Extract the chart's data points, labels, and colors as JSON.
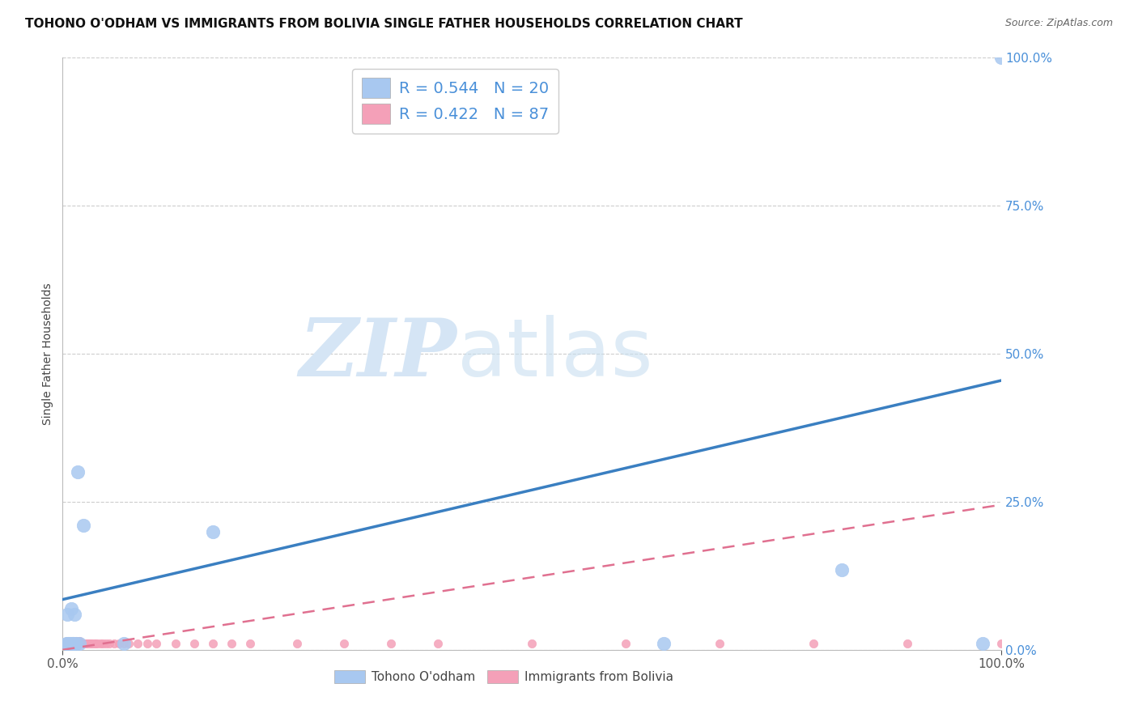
{
  "title": "TOHONO O'ODHAM VS IMMIGRANTS FROM BOLIVIA SINGLE FATHER HOUSEHOLDS CORRELATION CHART",
  "source": "Source: ZipAtlas.com",
  "ylabel": "Single Father Households",
  "watermark_zip": "ZIP",
  "watermark_atlas": "atlas",
  "xlim": [
    0.0,
    1.0
  ],
  "ylim": [
    0.0,
    1.0
  ],
  "ytick_values": [
    0.0,
    0.25,
    0.5,
    0.75,
    1.0
  ],
  "xtick_values": [
    0.0,
    1.0
  ],
  "grid_color": "#c8c8c8",
  "background_color": "#ffffff",
  "blue_color": "#4a90d9",
  "pink_color": "#e8a0b4",
  "line_blue_color": "#3a7fc1",
  "line_pink_color": "#e07090",
  "scatter_blue_color": "#a8c8f0",
  "scatter_pink_color": "#f4a0b8",
  "tohono_x": [
    0.004,
    0.005,
    0.006,
    0.007,
    0.008,
    0.009,
    0.01,
    0.011,
    0.012,
    0.013,
    0.014,
    0.016,
    0.018,
    0.022,
    0.065,
    0.16,
    0.64,
    0.83,
    0.98,
    1.0
  ],
  "tohono_y": [
    0.01,
    0.06,
    0.01,
    0.01,
    0.01,
    0.07,
    0.01,
    0.01,
    0.01,
    0.06,
    0.01,
    0.3,
    0.01,
    0.21,
    0.01,
    0.2,
    0.01,
    0.135,
    0.01,
    1.0
  ],
  "bolivia_x": [
    0.002,
    0.003,
    0.003,
    0.004,
    0.004,
    0.005,
    0.005,
    0.005,
    0.006,
    0.006,
    0.006,
    0.007,
    0.007,
    0.007,
    0.007,
    0.008,
    0.008,
    0.008,
    0.008,
    0.009,
    0.009,
    0.009,
    0.009,
    0.01,
    0.01,
    0.01,
    0.01,
    0.011,
    0.011,
    0.011,
    0.012,
    0.012,
    0.012,
    0.013,
    0.013,
    0.013,
    0.014,
    0.014,
    0.015,
    0.015,
    0.016,
    0.016,
    0.017,
    0.017,
    0.018,
    0.018,
    0.019,
    0.02,
    0.021,
    0.022,
    0.023,
    0.024,
    0.025,
    0.026,
    0.027,
    0.028,
    0.03,
    0.031,
    0.033,
    0.035,
    0.037,
    0.04,
    0.043,
    0.046,
    0.05,
    0.055,
    0.06,
    0.065,
    0.07,
    0.08,
    0.09,
    0.1,
    0.12,
    0.14,
    0.16,
    0.18,
    0.2,
    0.25,
    0.3,
    0.35,
    0.4,
    0.5,
    0.6,
    0.7,
    0.8,
    0.9,
    1.0
  ],
  "bolivia_y": [
    0.01,
    0.01,
    0.01,
    0.01,
    0.01,
    0.01,
    0.01,
    0.015,
    0.01,
    0.01,
    0.015,
    0.01,
    0.01,
    0.01,
    0.015,
    0.01,
    0.01,
    0.01,
    0.015,
    0.01,
    0.01,
    0.01,
    0.015,
    0.01,
    0.01,
    0.01,
    0.015,
    0.01,
    0.01,
    0.015,
    0.01,
    0.01,
    0.015,
    0.01,
    0.01,
    0.015,
    0.01,
    0.015,
    0.01,
    0.015,
    0.01,
    0.015,
    0.01,
    0.015,
    0.01,
    0.015,
    0.01,
    0.01,
    0.01,
    0.01,
    0.01,
    0.01,
    0.01,
    0.01,
    0.01,
    0.01,
    0.01,
    0.01,
    0.01,
    0.01,
    0.01,
    0.01,
    0.01,
    0.01,
    0.01,
    0.01,
    0.01,
    0.01,
    0.01,
    0.01,
    0.01,
    0.01,
    0.01,
    0.01,
    0.01,
    0.01,
    0.01,
    0.01,
    0.01,
    0.01,
    0.01,
    0.01,
    0.01,
    0.01,
    0.01,
    0.01,
    0.01
  ],
  "blue_line_x0": 0.0,
  "blue_line_y0": 0.085,
  "blue_line_x1": 1.0,
  "blue_line_y1": 0.455,
  "pink_line_x0": 0.0,
  "pink_line_y0": 0.0,
  "pink_line_x1": 1.0,
  "pink_line_y1": 0.245,
  "legend1_label": "R = 0.544   N = 20",
  "legend2_label": "R = 0.422   N = 87",
  "bottom_legend1": "Tohono O'odham",
  "bottom_legend2": "Immigrants from Bolivia",
  "title_fontsize": 11,
  "source_fontsize": 9,
  "tick_fontsize": 11,
  "legend_fontsize": 14
}
